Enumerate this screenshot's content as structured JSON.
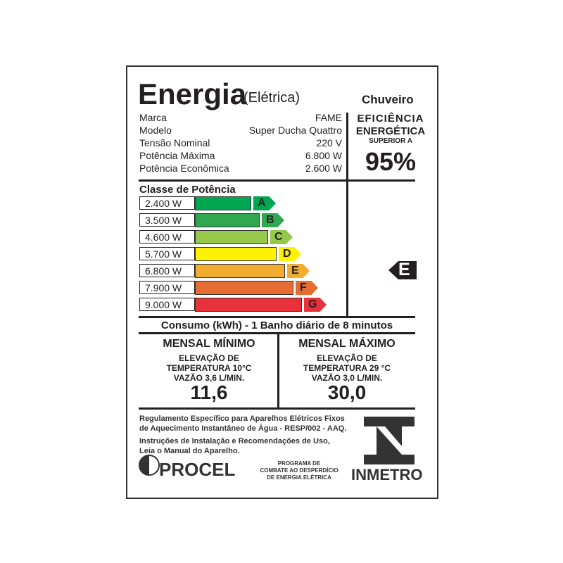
{
  "header": {
    "title": "Energia",
    "subtitle": "(Elétrica)",
    "product": "Chuveiro"
  },
  "specs": [
    {
      "label": "Marca",
      "value": "FAME"
    },
    {
      "label": "Modelo",
      "value": "Super Ducha Quattro"
    },
    {
      "label": "Tensão Nominal",
      "value": "220 V"
    },
    {
      "label": "Potência Máxima",
      "value": "6.800 W"
    },
    {
      "label": "Potência Econômica",
      "value": "2.600 W"
    }
  ],
  "efficiency": {
    "line1": "EFICIÊNCIA",
    "line2": "ENERGÉTICA",
    "line3": "SUPERIOR A",
    "value": "95%"
  },
  "classes": {
    "title": "Classe de Potência",
    "rows": [
      {
        "power": "2.400 W",
        "letter": "A",
        "color": "#00a651"
      },
      {
        "power": "3.500 W",
        "letter": "B",
        "color": "#2fa84f"
      },
      {
        "power": "4.600 W",
        "letter": "C",
        "color": "#95c84b"
      },
      {
        "power": "5.700 W",
        "letter": "D",
        "color": "#fff200"
      },
      {
        "power": "6.800 W",
        "letter": "E",
        "color": "#f0ad30"
      },
      {
        "power": "7.900 W",
        "letter": "F",
        "color": "#e56d33"
      },
      {
        "power": "9.000 W",
        "letter": "G",
        "color": "#e8313a"
      }
    ],
    "selected": "E"
  },
  "consumption": {
    "title": "Consumo (kWh) - 1 Banho diário de 8 minutos",
    "min": {
      "title": "MENSAL MÍNIMO",
      "l1": "ELEVAÇÃO DE",
      "l2": "TEMPERATURA 10°C",
      "l3": "VAZÃO 3,6 L/MIN.",
      "value": "11,6"
    },
    "max": {
      "title": "MENSAL MÁXIMO",
      "l1": "ELEVAÇÃO DE",
      "l2": "TEMPERATURA 29 °C",
      "l3": "VAZÃO 3,0 L/MIN.",
      "value": "30,0"
    }
  },
  "footer": {
    "reg1": "Regulamento Específico para Aparelhos Elétricos Fixos",
    "reg2": "de Aquecimento Instantâneo de Água - RESP/002 - AAQ.",
    "inst1": "Instruções de Instalação e Recomendações de Uso,",
    "inst2": "Leia o Manual do Aparelho.",
    "procel": "PROCEL",
    "prog1": "PROGRAMA DE",
    "prog2": "COMBATE AO DESPERDÍCIO",
    "prog3": "DE ENERGIA ELÉTRICA",
    "inmetro": "INMETRO"
  }
}
